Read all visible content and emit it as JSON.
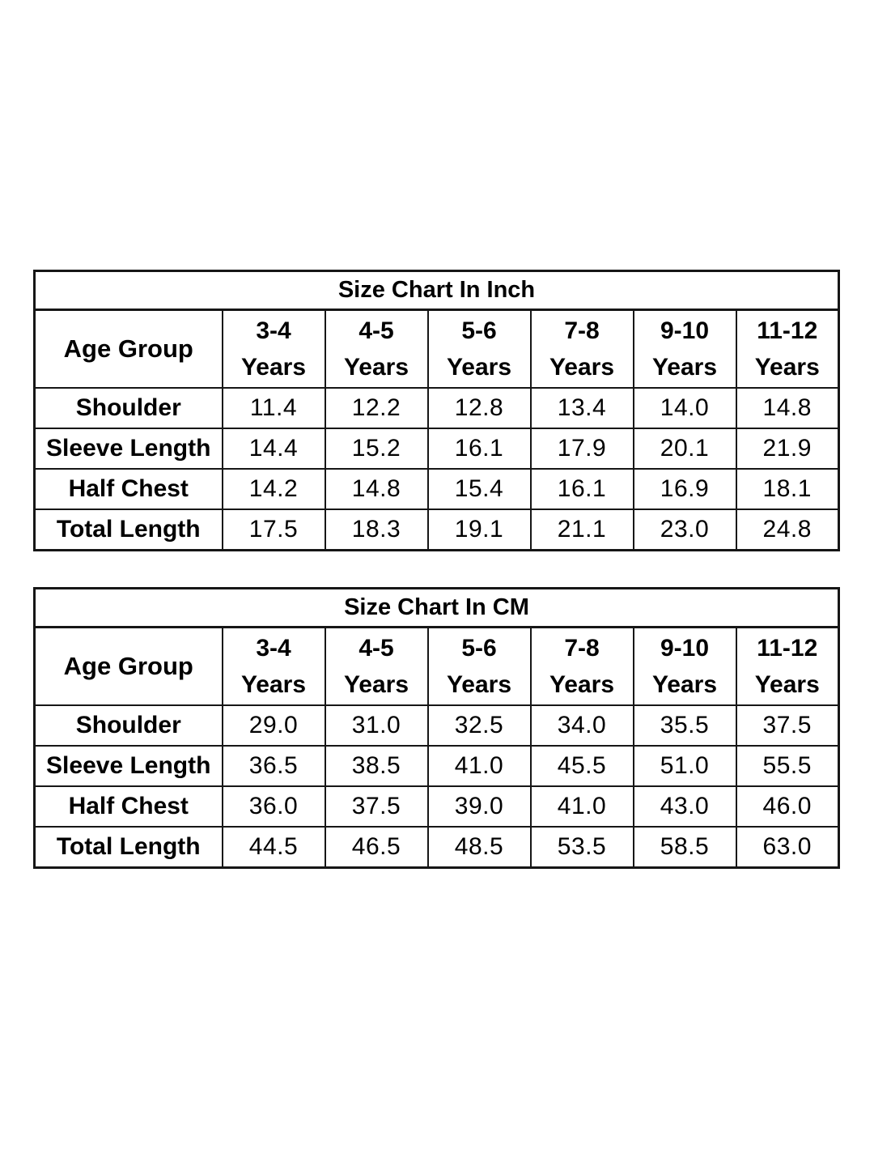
{
  "page": {
    "background": "#ffffff",
    "border_color": "#161616",
    "text_color": "#000000"
  },
  "chart_data": [
    {
      "type": "table",
      "title": "Size Chart In Inch",
      "unit": "inch",
      "corner_label": "Age Group",
      "age_groups": [
        [
          "3-4",
          "Years"
        ],
        [
          "4-5",
          "Years"
        ],
        [
          "5-6",
          "Years"
        ],
        [
          "7-8",
          "Years"
        ],
        [
          "9-10",
          "Years"
        ],
        [
          "11-12",
          "Years"
        ]
      ],
      "rows": [
        {
          "label": "Shoulder",
          "values": [
            "11.4",
            "12.2",
            "12.8",
            "13.4",
            "14.0",
            "14.8"
          ]
        },
        {
          "label": "Sleeve Length",
          "values": [
            "14.4",
            "15.2",
            "16.1",
            "17.9",
            "20.1",
            "21.9"
          ]
        },
        {
          "label": "Half Chest",
          "values": [
            "14.2",
            "14.8",
            "15.4",
            "16.1",
            "16.9",
            "18.1"
          ]
        },
        {
          "label": "Total Length",
          "values": [
            "17.5",
            "18.3",
            "19.1",
            "21.1",
            "23.0",
            "24.8"
          ]
        }
      ]
    },
    {
      "type": "table",
      "title": "Size Chart In CM",
      "unit": "cm",
      "corner_label": "Age Group",
      "age_groups": [
        [
          "3-4",
          "Years"
        ],
        [
          "4-5",
          "Years"
        ],
        [
          "5-6",
          "Years"
        ],
        [
          "7-8",
          "Years"
        ],
        [
          "9-10",
          "Years"
        ],
        [
          "11-12",
          "Years"
        ]
      ],
      "rows": [
        {
          "label": "Shoulder",
          "values": [
            "29.0",
            "31.0",
            "32.5",
            "34.0",
            "35.5",
            "37.5"
          ]
        },
        {
          "label": "Sleeve Length",
          "values": [
            "36.5",
            "38.5",
            "41.0",
            "45.5",
            "51.0",
            "55.5"
          ]
        },
        {
          "label": "Half Chest",
          "values": [
            "36.0",
            "37.5",
            "39.0",
            "41.0",
            "43.0",
            "46.0"
          ]
        },
        {
          "label": "Total Length",
          "values": [
            "44.5",
            "46.5",
            "48.5",
            "53.5",
            "58.5",
            "63.0"
          ]
        }
      ]
    }
  ]
}
